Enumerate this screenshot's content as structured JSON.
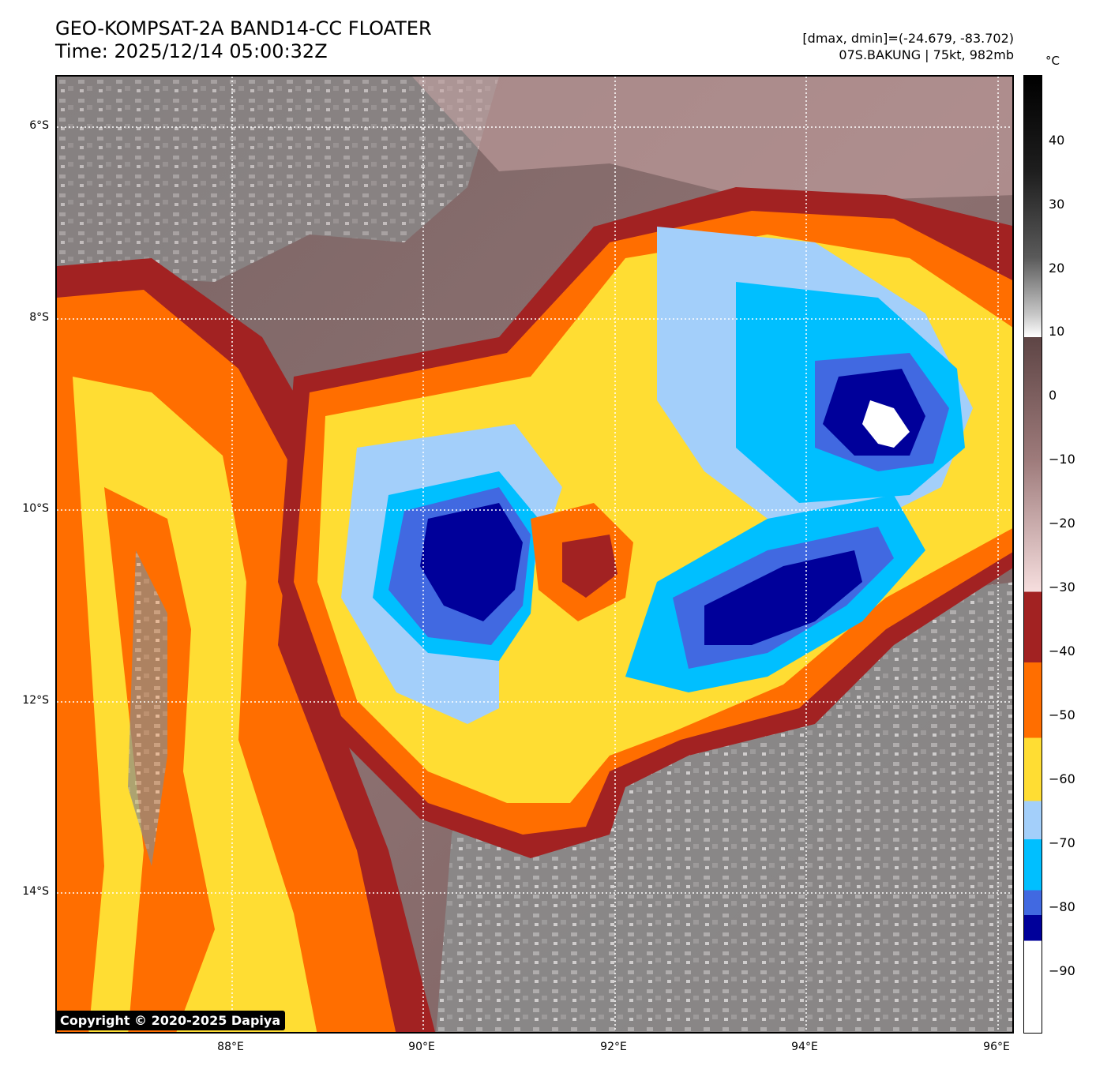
{
  "header": {
    "title_line1": "GEO-KOMPSAT-2A BAND14-CC FLOATER",
    "title_line2": "Time: 2025/12/14 05:00:32Z",
    "range_text": "[dmax, dmin]=(-24.679, -83.702)",
    "storm_text": "07S.BAKUNG | 75kt, 982mb"
  },
  "colorbar": {
    "unit": "°C",
    "ticks": [
      "40",
      "30",
      "20",
      "10",
      "0",
      "−10",
      "−20",
      "−30",
      "−40",
      "−50",
      "−60",
      "−70",
      "−80",
      "−90"
    ],
    "bands": [
      {
        "from": 50,
        "to": 10,
        "colors": [
          "#000000",
          "#2a2a2a",
          "#8a8a8a",
          "#ffffff"
        ]
      },
      {
        "from": 10,
        "to": -30,
        "colors": [
          "#5e4545",
          "#b89494",
          "#f6dede"
        ]
      },
      {
        "from": -30,
        "to": -41,
        "color": "#a22222"
      },
      {
        "from": -41,
        "to": -53,
        "color": "#ff6e00"
      },
      {
        "from": -53,
        "to": -63,
        "color": "#ffdd33"
      },
      {
        "from": -63,
        "to": -69,
        "color": "#a3cffa"
      },
      {
        "from": -69,
        "to": -77,
        "color": "#00bfff"
      },
      {
        "from": -77,
        "to": -81,
        "color": "#4169e1"
      },
      {
        "from": -81,
        "to": -85,
        "color": "#00009a"
      },
      {
        "from": -85,
        "to": -100,
        "color": "#ffffff"
      }
    ]
  },
  "axes": {
    "lat_labels": [
      "6°S",
      "8°S",
      "10°S",
      "12°S",
      "14°S"
    ],
    "lon_labels": [
      "88°E",
      "90°E",
      "92°E",
      "94°E",
      "96°E"
    ]
  },
  "copyright": "Copyright © 2020-2025 Dapiya"
}
